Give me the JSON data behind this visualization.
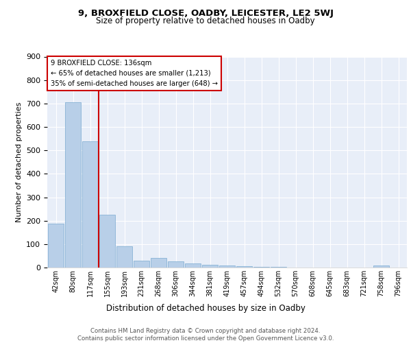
{
  "title": "9, BROXFIELD CLOSE, OADBY, LEICESTER, LE2 5WJ",
  "subtitle": "Size of property relative to detached houses in Oadby",
  "xlabel": "Distribution of detached houses by size in Oadby",
  "ylabel": "Number of detached properties",
  "categories": [
    "42sqm",
    "80sqm",
    "117sqm",
    "155sqm",
    "193sqm",
    "231sqm",
    "268sqm",
    "306sqm",
    "344sqm",
    "381sqm",
    "419sqm",
    "457sqm",
    "494sqm",
    "532sqm",
    "570sqm",
    "608sqm",
    "645sqm",
    "683sqm",
    "721sqm",
    "758sqm",
    "796sqm"
  ],
  "values": [
    188,
    706,
    540,
    224,
    90,
    29,
    40,
    25,
    18,
    12,
    8,
    5,
    4,
    3,
    1,
    0,
    0,
    0,
    0,
    9,
    0
  ],
  "bar_color": "#b8cfe8",
  "bar_edge_color": "#7aaad0",
  "vline_color": "#cc0000",
  "annotation_lines": [
    "9 BROXFIELD CLOSE: 136sqm",
    "← 65% of detached houses are smaller (1,213)",
    "35% of semi-detached houses are larger (648) →"
  ],
  "annotation_box_color": "#cc0000",
  "ylim": [
    0,
    900
  ],
  "yticks": [
    0,
    100,
    200,
    300,
    400,
    500,
    600,
    700,
    800,
    900
  ],
  "footer_line1": "Contains HM Land Registry data © Crown copyright and database right 2024.",
  "footer_line2": "Contains public sector information licensed under the Open Government Licence v3.0.",
  "fig_bg_color": "#ffffff",
  "plot_bg_color": "#e8eef8"
}
